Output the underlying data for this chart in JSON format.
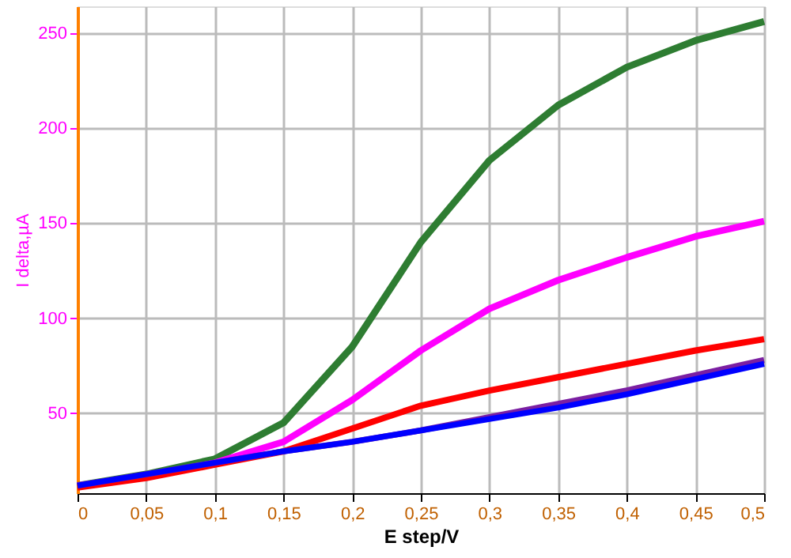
{
  "chart_data": {
    "type": "line",
    "xlabel": "E step/V",
    "ylabel": "I delta,µA",
    "x": [
      0,
      0.05,
      0.1,
      0.15,
      0.2,
      0.25,
      0.3,
      0.35,
      0.4,
      0.45,
      0.5
    ],
    "series": [
      {
        "color": "#2e7d32",
        "values": [
          12,
          18,
          26,
          45,
          85,
          140,
          183,
          212,
          232,
          246,
          256
        ]
      },
      {
        "color": "#ff00ff",
        "values": [
          12,
          17,
          24,
          35,
          57,
          83,
          105,
          120,
          132,
          143,
          151
        ]
      },
      {
        "color": "#ff0000",
        "values": [
          11,
          16,
          23,
          30,
          42,
          54,
          62,
          69,
          76,
          83,
          89
        ]
      },
      {
        "color": "#7b1fa2",
        "values": [
          12,
          18,
          24,
          30,
          35,
          41,
          48,
          55,
          62,
          70,
          78
        ]
      },
      {
        "color": "#0000ff",
        "values": [
          12,
          18,
          24,
          30,
          35,
          41,
          47,
          53,
          60,
          68,
          76
        ]
      }
    ],
    "xlim": [
      0,
      0.5
    ],
    "ylim": [
      8,
      264
    ],
    "xticks": [
      0,
      {
        "value": 0.05,
        "label": "0,05"
      },
      {
        "value": 0.1,
        "label": "0,1"
      },
      {
        "value": 0.15,
        "label": "0,15"
      },
      {
        "value": 0.2,
        "label": "0,2"
      },
      {
        "value": 0.25,
        "label": "0,25"
      },
      {
        "value": 0.3,
        "label": "0,3"
      },
      {
        "value": 0.35,
        "label": "0,35"
      },
      {
        "value": 0.4,
        "label": "0,4"
      },
      {
        "value": 0.45,
        "label": "0,45"
      },
      {
        "value": 0.5,
        "label": "0,5"
      }
    ],
    "yticks": [
      50,
      100,
      150,
      200,
      250
    ],
    "grid": true,
    "legend": false,
    "marker": "none",
    "line_style": "solid"
  }
}
